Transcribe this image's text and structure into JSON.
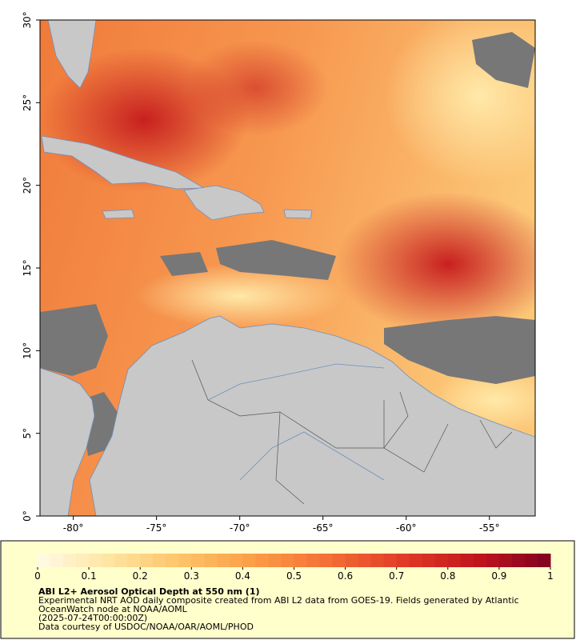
{
  "map": {
    "xlim": [
      -82,
      -52.25
    ],
    "ylim": [
      0,
      30
    ],
    "xticks": [
      {
        "value": -80,
        "label": "-80°"
      },
      {
        "value": -75,
        "label": "-75°"
      },
      {
        "value": -70,
        "label": "-70°"
      },
      {
        "value": -65,
        "label": "-65°"
      },
      {
        "value": -60,
        "label": "-60°"
      },
      {
        "value": -55,
        "label": "-55°"
      }
    ],
    "yticks": [
      {
        "value": 0,
        "label": "0°"
      },
      {
        "value": 5,
        "label": "5°"
      },
      {
        "value": 10,
        "label": "10°"
      },
      {
        "value": 15,
        "label": "15°"
      },
      {
        "value": 20,
        "label": "20°"
      },
      {
        "value": 25,
        "label": "25°"
      },
      {
        "value": 30,
        "label": "30°"
      }
    ]
  },
  "colorbar": {
    "range": [
      0,
      1
    ],
    "ticks": [
      0,
      0.1,
      0.2,
      0.3,
      0.4,
      0.5,
      0.6,
      0.7,
      0.8,
      0.9,
      1
    ],
    "colors": [
      "#fffbe6",
      "#ffe4a0",
      "#fdc266",
      "#fb9a45",
      "#f46e34",
      "#e03a26",
      "#c1151c",
      "#800020"
    ]
  },
  "legend": {
    "title": "ABI L2+ Aerosol Optical Depth at 550 nm (1)",
    "lines": [
      "Experimental NRT AOD daily composite created from ABI L2 data from GOES-19. Fields generated by Atlantic",
      "OceanWatch node at NOAA/AOML",
      "(2025-07-24T00:00:00Z)",
      "Data courtesy of USDOC/NOAA/OAR/AOML/PHOD"
    ]
  }
}
